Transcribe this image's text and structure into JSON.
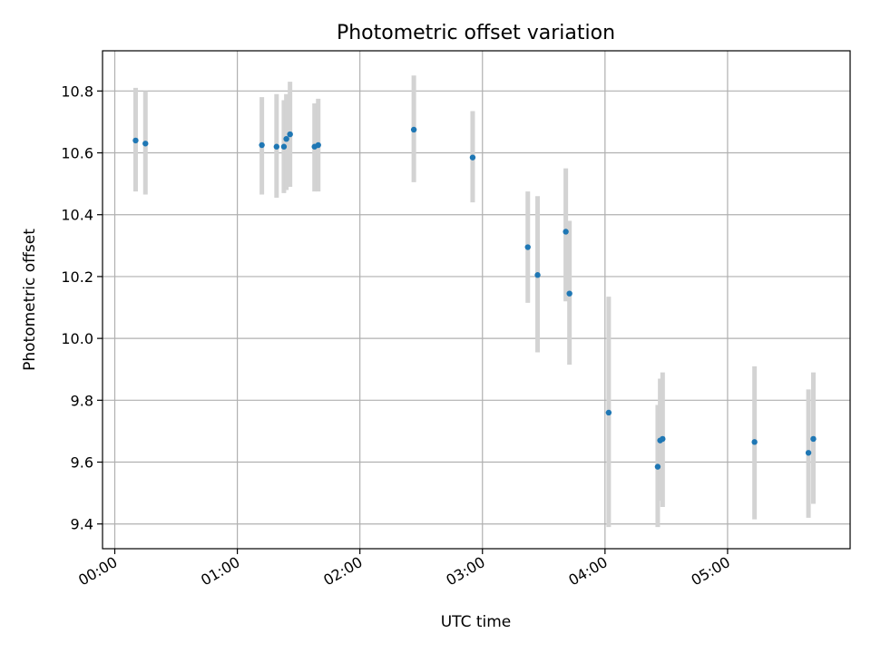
{
  "chart_data": {
    "type": "scatter",
    "title": "Photometric offset variation",
    "xlabel": "UTC time",
    "ylabel": "Photometric offset",
    "x_unit": "hours UTC",
    "xlim": [
      -0.1,
      6.0
    ],
    "ylim": [
      9.32,
      10.93
    ],
    "x_ticks": [
      {
        "value": 0,
        "label": "00:00"
      },
      {
        "value": 1,
        "label": "01:00"
      },
      {
        "value": 2,
        "label": "02:00"
      },
      {
        "value": 3,
        "label": "03:00"
      },
      {
        "value": 4,
        "label": "04:00"
      },
      {
        "value": 5,
        "label": "05:00"
      }
    ],
    "y_ticks": [
      {
        "value": 9.4,
        "label": "9.4"
      },
      {
        "value": 9.6,
        "label": "9.6"
      },
      {
        "value": 9.8,
        "label": "9.8"
      },
      {
        "value": 10.0,
        "label": "10.0"
      },
      {
        "value": 10.2,
        "label": "10.2"
      },
      {
        "value": 10.4,
        "label": "10.4"
      },
      {
        "value": 10.6,
        "label": "10.6"
      },
      {
        "value": 10.8,
        "label": "10.8"
      }
    ],
    "grid": true,
    "colors": {
      "points": "#1f77b4",
      "error_bars": "#d3d3d3",
      "grid": "#b0b0b0"
    },
    "points": [
      {
        "x": 0.17,
        "y": 10.64,
        "ylo": 10.475,
        "yhi": 10.81
      },
      {
        "x": 0.25,
        "y": 10.63,
        "ylo": 10.465,
        "yhi": 10.8
      },
      {
        "x": 1.2,
        "y": 10.625,
        "ylo": 10.465,
        "yhi": 10.78
      },
      {
        "x": 1.32,
        "y": 10.62,
        "ylo": 10.455,
        "yhi": 10.79
      },
      {
        "x": 1.38,
        "y": 10.62,
        "ylo": 10.47,
        "yhi": 10.77
      },
      {
        "x": 1.4,
        "y": 10.645,
        "ylo": 10.48,
        "yhi": 10.79
      },
      {
        "x": 1.43,
        "y": 10.66,
        "ylo": 10.49,
        "yhi": 10.83
      },
      {
        "x": 1.63,
        "y": 10.62,
        "ylo": 10.475,
        "yhi": 10.76
      },
      {
        "x": 1.66,
        "y": 10.625,
        "ylo": 10.475,
        "yhi": 10.775
      },
      {
        "x": 2.44,
        "y": 10.675,
        "ylo": 10.505,
        "yhi": 10.85
      },
      {
        "x": 2.92,
        "y": 10.585,
        "ylo": 10.44,
        "yhi": 10.735
      },
      {
        "x": 3.37,
        "y": 10.295,
        "ylo": 10.115,
        "yhi": 10.475
      },
      {
        "x": 3.45,
        "y": 10.205,
        "ylo": 9.955,
        "yhi": 10.46
      },
      {
        "x": 3.68,
        "y": 10.345,
        "ylo": 10.12,
        "yhi": 10.55
      },
      {
        "x": 3.71,
        "y": 10.145,
        "ylo": 9.915,
        "yhi": 10.38
      },
      {
        "x": 4.03,
        "y": 9.76,
        "ylo": 9.39,
        "yhi": 10.135
      },
      {
        "x": 4.43,
        "y": 9.585,
        "ylo": 9.39,
        "yhi": 9.785
      },
      {
        "x": 4.45,
        "y": 9.67,
        "ylo": 9.475,
        "yhi": 9.87
      },
      {
        "x": 4.47,
        "y": 9.675,
        "ylo": 9.455,
        "yhi": 9.89
      },
      {
        "x": 5.22,
        "y": 9.665,
        "ylo": 9.415,
        "yhi": 9.91
      },
      {
        "x": 5.66,
        "y": 9.63,
        "ylo": 9.42,
        "yhi": 9.835
      },
      {
        "x": 5.7,
        "y": 9.675,
        "ylo": 9.465,
        "yhi": 9.89
      }
    ]
  }
}
